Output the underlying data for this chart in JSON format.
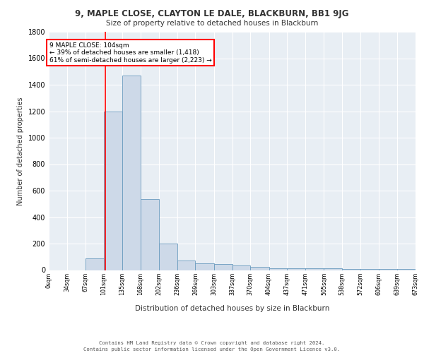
{
  "title1": "9, MAPLE CLOSE, CLAYTON LE DALE, BLACKBURN, BB1 9JG",
  "title2": "Size of property relative to detached houses in Blackburn",
  "xlabel": "Distribution of detached houses by size in Blackburn",
  "ylabel": "Number of detached properties",
  "bin_edges": [
    0,
    34,
    67,
    101,
    135,
    168,
    202,
    236,
    269,
    303,
    337,
    370,
    404,
    437,
    471,
    505,
    538,
    572,
    606,
    639,
    673
  ],
  "bar_heights": [
    0,
    0,
    90,
    1200,
    1470,
    535,
    200,
    70,
    50,
    45,
    35,
    25,
    15,
    15,
    15,
    12,
    10,
    8,
    8,
    8
  ],
  "bar_color": "#cdd9e8",
  "bar_edge_color": "#6a9bbf",
  "background_color": "#e8eef4",
  "red_line_x": 104,
  "annotation_text": "9 MAPLE CLOSE: 104sqm\n← 39% of detached houses are smaller (1,418)\n61% of semi-detached houses are larger (2,223) →",
  "annotation_box_color": "white",
  "annotation_box_edge": "red",
  "ylim": [
    0,
    1800
  ],
  "yticks": [
    0,
    200,
    400,
    600,
    800,
    1000,
    1200,
    1400,
    1600,
    1800
  ],
  "footer1": "Contains HM Land Registry data © Crown copyright and database right 2024.",
  "footer2": "Contains public sector information licensed under the Open Government Licence v3.0.",
  "tick_labels": [
    "0sqm",
    "34sqm",
    "67sqm",
    "101sqm",
    "135sqm",
    "168sqm",
    "202sqm",
    "236sqm",
    "269sqm",
    "303sqm",
    "337sqm",
    "370sqm",
    "404sqm",
    "437sqm",
    "471sqm",
    "505sqm",
    "538sqm",
    "572sqm",
    "606sqm",
    "639sqm",
    "673sqm"
  ]
}
